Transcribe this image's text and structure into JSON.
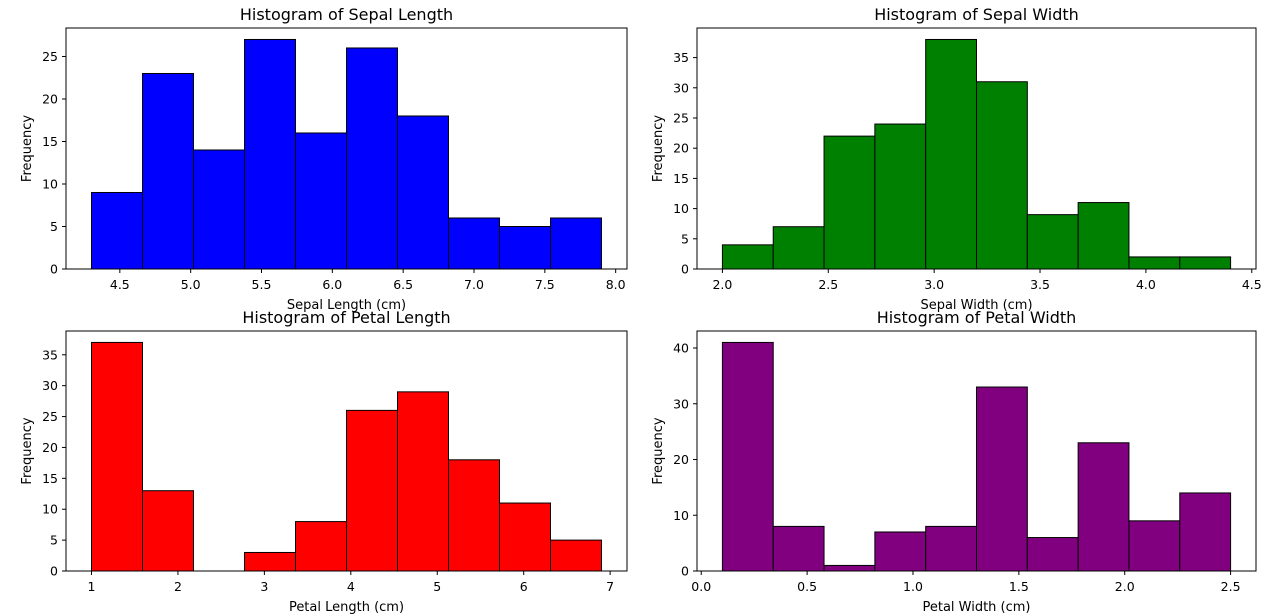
{
  "chart_data": [
    {
      "type": "bar",
      "id": "sepal-length",
      "title": "Histogram of Sepal Length",
      "xlabel": "Sepal Length (cm)",
      "ylabel": "Frequency",
      "color": "#0000ff",
      "bin_edges": [
        4.3,
        4.66,
        5.02,
        5.38,
        5.74,
        6.1,
        6.46,
        6.82,
        7.18,
        7.54,
        7.9
      ],
      "values": [
        9,
        23,
        14,
        27,
        16,
        26,
        18,
        6,
        5,
        6
      ],
      "xlim": [
        4.12,
        8.08
      ],
      "ylim": [
        0,
        28.35
      ],
      "xticks": [
        4.5,
        5.0,
        5.5,
        6.0,
        6.5,
        7.0,
        7.5,
        8.0
      ],
      "xtick_labels": [
        "4.5",
        "5.0",
        "5.5",
        "6.0",
        "6.5",
        "7.0",
        "7.5",
        "8.0"
      ],
      "yticks": [
        0,
        5,
        10,
        15,
        20,
        25
      ],
      "ytick_labels": [
        "0",
        "5",
        "10",
        "15",
        "20",
        "25"
      ],
      "grid": false
    },
    {
      "type": "bar",
      "id": "sepal-width",
      "title": "Histogram of Sepal Width",
      "xlabel": "Sepal Width (cm)",
      "ylabel": "Frequency",
      "color": "#008000",
      "bin_edges": [
        2.0,
        2.24,
        2.48,
        2.72,
        2.96,
        3.2,
        3.44,
        3.68,
        3.92,
        4.16,
        4.4
      ],
      "values": [
        4,
        7,
        22,
        24,
        38,
        31,
        9,
        11,
        2,
        2
      ],
      "xlim": [
        1.88,
        4.52
      ],
      "ylim": [
        0,
        39.9
      ],
      "xticks": [
        2.0,
        2.5,
        3.0,
        3.5,
        4.0,
        4.5
      ],
      "xtick_labels": [
        "2.0",
        "2.5",
        "3.0",
        "3.5",
        "4.0",
        "4.5"
      ],
      "yticks": [
        0,
        5,
        10,
        15,
        20,
        25,
        30,
        35
      ],
      "ytick_labels": [
        "0",
        "5",
        "10",
        "15",
        "20",
        "25",
        "30",
        "35"
      ],
      "grid": false
    },
    {
      "type": "bar",
      "id": "petal-length",
      "title": "Histogram of Petal Length",
      "xlabel": "Petal Length (cm)",
      "ylabel": "Frequency",
      "color": "#ff0000",
      "bin_edges": [
        1.0,
        1.59,
        2.18,
        2.77,
        3.36,
        3.95,
        4.54,
        5.13,
        5.72,
        6.31,
        6.9
      ],
      "values": [
        37,
        13,
        0,
        3,
        8,
        26,
        29,
        18,
        11,
        5
      ],
      "xlim": [
        0.705,
        7.195
      ],
      "ylim": [
        0,
        38.85
      ],
      "xticks": [
        1,
        2,
        3,
        4,
        5,
        6,
        7
      ],
      "xtick_labels": [
        "1",
        "2",
        "3",
        "4",
        "5",
        "6",
        "7"
      ],
      "yticks": [
        0,
        5,
        10,
        15,
        20,
        25,
        30,
        35
      ],
      "ytick_labels": [
        "0",
        "5",
        "10",
        "15",
        "20",
        "25",
        "30",
        "35"
      ],
      "grid": false
    },
    {
      "type": "bar",
      "id": "petal-width",
      "title": "Histogram of Petal Width",
      "xlabel": "Petal Width (cm)",
      "ylabel": "Frequency",
      "color": "#800080",
      "bin_edges": [
        0.1,
        0.34,
        0.58,
        0.82,
        1.06,
        1.3,
        1.54,
        1.78,
        2.02,
        2.26,
        2.5
      ],
      "values": [
        41,
        8,
        1,
        7,
        8,
        33,
        6,
        23,
        9,
        14
      ],
      "xlim": [
        -0.02,
        2.62
      ],
      "ylim": [
        0,
        43.05
      ],
      "xticks": [
        0.0,
        0.5,
        1.0,
        1.5,
        2.0,
        2.5
      ],
      "xtick_labels": [
        "0.0",
        "0.5",
        "1.0",
        "1.5",
        "2.0",
        "2.5"
      ],
      "yticks": [
        0,
        10,
        20,
        30,
        40
      ],
      "ytick_labels": [
        "0",
        "10",
        "20",
        "30",
        "40"
      ],
      "grid": false
    }
  ]
}
